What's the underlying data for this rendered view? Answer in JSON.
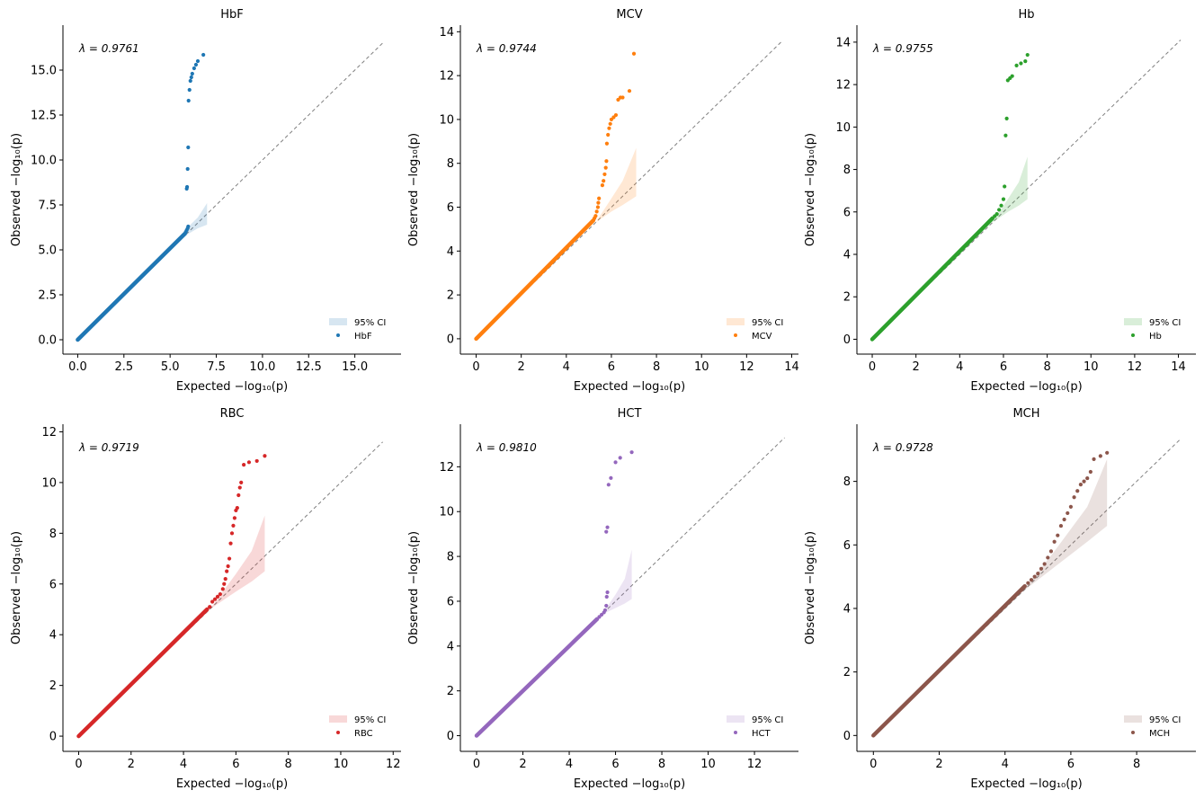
{
  "figure": {
    "xlabel": "Expected −log₁₀(p)",
    "ylabel": "Observed −log₁₀(p)",
    "ci_label": "95% CI"
  },
  "chart_data": [
    {
      "type": "scatter",
      "title": "HbF",
      "lambda_label": "λ = 0.9761",
      "color": "#1f77b4",
      "xlim": [
        -0.8,
        17.5
      ],
      "ylim": [
        -0.8,
        17.5
      ],
      "diag_max": 16.6,
      "xticks": [
        0,
        2.5,
        5,
        7.5,
        10,
        12.5,
        15
      ],
      "yticks": [
        0,
        2.5,
        5,
        7.5,
        10,
        12.5,
        15
      ],
      "tick_labels": [
        "0.0",
        "2.5",
        "5.0",
        "7.5",
        "10.0",
        "12.5",
        "15.0"
      ],
      "ci": {
        "x": [
          5.4,
          6.0,
          6.5,
          7.0
        ],
        "lower": [
          5.4,
          5.9,
          6.2,
          6.4
        ],
        "upper": [
          5.4,
          6.3,
          6.8,
          7.6
        ]
      },
      "series": [
        {
          "name": "HbF",
          "x_end": 5.8,
          "y_end": 5.9,
          "tail": [
            [
              5.85,
              6.0
            ],
            [
              5.9,
              6.1
            ],
            [
              5.95,
              6.2
            ],
            [
              5.98,
              6.3
            ],
            [
              5.9,
              8.4
            ],
            [
              5.92,
              8.5
            ],
            [
              5.95,
              9.5
            ],
            [
              5.98,
              10.7
            ],
            [
              6.0,
              13.3
            ],
            [
              6.05,
              13.9
            ],
            [
              6.1,
              14.4
            ],
            [
              6.15,
              14.6
            ],
            [
              6.2,
              14.8
            ],
            [
              6.3,
              15.1
            ],
            [
              6.4,
              15.3
            ],
            [
              6.5,
              15.5
            ],
            [
              6.8,
              15.85
            ]
          ]
        }
      ]
    },
    {
      "type": "scatter",
      "title": "MCV",
      "lambda_label": "λ = 0.9744",
      "color": "#ff7f0e",
      "xlim": [
        -0.7,
        14.3
      ],
      "ylim": [
        -0.7,
        14.3
      ],
      "diag_max": 13.6,
      "xticks": [
        0,
        2,
        4,
        6,
        8,
        10,
        12,
        14
      ],
      "yticks": [
        0,
        2,
        4,
        6,
        8,
        10,
        12,
        14
      ],
      "tick_labels": [
        "0",
        "2",
        "4",
        "6",
        "8",
        "10",
        "12",
        "14"
      ],
      "ci": {
        "x": [
          5.3,
          6.0,
          6.5,
          7.1
        ],
        "lower": [
          5.3,
          5.8,
          6.1,
          6.5
        ],
        "upper": [
          5.3,
          6.4,
          7.2,
          8.7
        ]
      },
      "series": [
        {
          "name": "MCV",
          "x_end": 5.2,
          "y_end": 5.4,
          "tail": [
            [
              5.25,
              5.5
            ],
            [
              5.3,
              5.6
            ],
            [
              5.35,
              5.8
            ],
            [
              5.4,
              6.0
            ],
            [
              5.42,
              6.2
            ],
            [
              5.45,
              6.4
            ],
            [
              5.6,
              7.0
            ],
            [
              5.65,
              7.2
            ],
            [
              5.7,
              7.5
            ],
            [
              5.75,
              7.8
            ],
            [
              5.78,
              8.1
            ],
            [
              5.8,
              8.9
            ],
            [
              5.85,
              9.3
            ],
            [
              5.9,
              9.6
            ],
            [
              5.95,
              9.8
            ],
            [
              6.0,
              10.0
            ],
            [
              6.1,
              10.1
            ],
            [
              6.2,
              10.2
            ],
            [
              6.3,
              10.9
            ],
            [
              6.4,
              11.0
            ],
            [
              6.5,
              11.0
            ],
            [
              6.8,
              11.3
            ],
            [
              7.0,
              13.0
            ]
          ]
        }
      ]
    },
    {
      "type": "scatter",
      "title": "Hb",
      "lambda_label": "λ = 0.9755",
      "color": "#2ca02c",
      "xlim": [
        -0.7,
        14.8
      ],
      "ylim": [
        -0.7,
        14.8
      ],
      "diag_max": 14.1,
      "xticks": [
        0,
        2,
        4,
        6,
        8,
        10,
        12,
        14
      ],
      "yticks": [
        0,
        2,
        4,
        6,
        8,
        10,
        12,
        14
      ],
      "tick_labels": [
        "0",
        "2",
        "4",
        "6",
        "8",
        "10",
        "12",
        "14"
      ],
      "ci": {
        "x": [
          5.5,
          6.2,
          6.7,
          7.1
        ],
        "lower": [
          5.5,
          6.0,
          6.3,
          6.6
        ],
        "upper": [
          5.5,
          6.6,
          7.4,
          8.6
        ]
      },
      "series": [
        {
          "name": "Hb",
          "x_end": 5.5,
          "y_end": 5.7,
          "tail": [
            [
              5.6,
              5.8
            ],
            [
              5.7,
              5.9
            ],
            [
              5.8,
              6.1
            ],
            [
              5.9,
              6.3
            ],
            [
              6.0,
              6.6
            ],
            [
              6.05,
              7.2
            ],
            [
              6.1,
              9.6
            ],
            [
              6.15,
              10.4
            ],
            [
              6.2,
              12.2
            ],
            [
              6.3,
              12.3
            ],
            [
              6.4,
              12.4
            ],
            [
              6.6,
              12.9
            ],
            [
              6.8,
              13.0
            ],
            [
              7.0,
              13.1
            ],
            [
              7.1,
              13.4
            ]
          ]
        }
      ]
    },
    {
      "type": "scatter",
      "title": "RBC",
      "lambda_label": "λ = 0.9719",
      "color": "#d62728",
      "xlim": [
        -0.6,
        12.3
      ],
      "ylim": [
        -0.6,
        12.3
      ],
      "diag_max": 11.6,
      "xticks": [
        0,
        2,
        4,
        6,
        8,
        10,
        12
      ],
      "yticks": [
        0,
        2,
        4,
        6,
        8,
        10,
        12
      ],
      "tick_labels": [
        "0",
        "2",
        "4",
        "6",
        "8",
        "10",
        "12"
      ],
      "ci": {
        "x": [
          5.0,
          6.0,
          6.6,
          7.1
        ],
        "lower": [
          5.0,
          5.7,
          6.1,
          6.5
        ],
        "upper": [
          5.0,
          6.4,
          7.3,
          8.7
        ]
      },
      "series": [
        {
          "name": "RBC",
          "x_end": 4.9,
          "y_end": 5.0,
          "tail": [
            [
              5.0,
              5.1
            ],
            [
              5.1,
              5.3
            ],
            [
              5.2,
              5.4
            ],
            [
              5.3,
              5.5
            ],
            [
              5.4,
              5.6
            ],
            [
              5.5,
              5.8
            ],
            [
              5.55,
              6.0
            ],
            [
              5.6,
              6.2
            ],
            [
              5.65,
              6.5
            ],
            [
              5.7,
              6.7
            ],
            [
              5.75,
              7.0
            ],
            [
              5.8,
              7.6
            ],
            [
              5.85,
              8.0
            ],
            [
              5.9,
              8.3
            ],
            [
              5.95,
              8.6
            ],
            [
              6.0,
              8.9
            ],
            [
              6.05,
              9.0
            ],
            [
              6.1,
              9.5
            ],
            [
              6.15,
              9.8
            ],
            [
              6.2,
              10.0
            ],
            [
              6.3,
              10.7
            ],
            [
              6.5,
              10.8
            ],
            [
              6.8,
              10.85
            ],
            [
              7.1,
              11.05
            ]
          ]
        }
      ]
    },
    {
      "type": "scatter",
      "title": "HCT",
      "lambda_label": "λ = 0.9810",
      "color": "#9467bd",
      "xlim": [
        -0.7,
        13.9
      ],
      "ylim": [
        -0.7,
        13.9
      ],
      "diag_max": 13.3,
      "xticks": [
        0,
        2,
        4,
        6,
        8,
        10,
        12
      ],
      "yticks": [
        0,
        2,
        4,
        6,
        8,
        10,
        12
      ],
      "tick_labels": [
        "0",
        "2",
        "4",
        "6",
        "8",
        "10",
        "12"
      ],
      "ci": {
        "x": [
          5.4,
          6.0,
          6.4,
          6.7
        ],
        "lower": [
          5.4,
          5.7,
          5.9,
          6.1
        ],
        "upper": [
          5.4,
          6.3,
          7.0,
          8.3
        ]
      },
      "series": [
        {
          "name": "HCT",
          "x_end": 5.2,
          "y_end": 5.2,
          "tail": [
            [
              5.3,
              5.3
            ],
            [
              5.4,
              5.4
            ],
            [
              5.5,
              5.5
            ],
            [
              5.55,
              5.6
            ],
            [
              5.6,
              5.8
            ],
            [
              5.62,
              6.2
            ],
            [
              5.65,
              6.4
            ],
            [
              5.6,
              9.1
            ],
            [
              5.65,
              9.3
            ],
            [
              5.7,
              11.2
            ],
            [
              5.8,
              11.5
            ],
            [
              6.0,
              12.2
            ],
            [
              6.2,
              12.4
            ],
            [
              6.7,
              12.65
            ]
          ]
        }
      ]
    },
    {
      "type": "scatter",
      "title": "MCH",
      "lambda_label": "λ = 0.9728",
      "color": "#8c564b",
      "xlim": [
        -0.5,
        9.8
      ],
      "ylim": [
        -0.5,
        9.8
      ],
      "diag_max": 9.3,
      "xticks": [
        0,
        2,
        4,
        6,
        8
      ],
      "yticks": [
        0,
        2,
        4,
        6,
        8
      ],
      "tick_labels": [
        "0",
        "2",
        "4",
        "6",
        "8"
      ],
      "ci": {
        "x": [
          4.5,
          5.5,
          6.5,
          7.1
        ],
        "lower": [
          4.5,
          5.3,
          6.1,
          6.6
        ],
        "upper": [
          4.5,
          5.8,
          7.2,
          8.7
        ]
      },
      "series": [
        {
          "name": "MCH",
          "x_end": 4.6,
          "y_end": 4.7,
          "tail": [
            [
              4.7,
              4.8
            ],
            [
              4.8,
              4.9
            ],
            [
              4.9,
              5.0
            ],
            [
              5.0,
              5.1
            ],
            [
              5.1,
              5.25
            ],
            [
              5.2,
              5.4
            ],
            [
              5.3,
              5.6
            ],
            [
              5.4,
              5.8
            ],
            [
              5.5,
              6.1
            ],
            [
              5.6,
              6.3
            ],
            [
              5.7,
              6.6
            ],
            [
              5.8,
              6.8
            ],
            [
              5.9,
              7.0
            ],
            [
              6.0,
              7.2
            ],
            [
              6.1,
              7.5
            ],
            [
              6.2,
              7.7
            ],
            [
              6.3,
              7.9
            ],
            [
              6.4,
              8.0
            ],
            [
              6.5,
              8.1
            ],
            [
              6.6,
              8.3
            ],
            [
              6.7,
              8.7
            ],
            [
              6.9,
              8.8
            ],
            [
              7.1,
              8.9
            ]
          ]
        }
      ]
    }
  ]
}
